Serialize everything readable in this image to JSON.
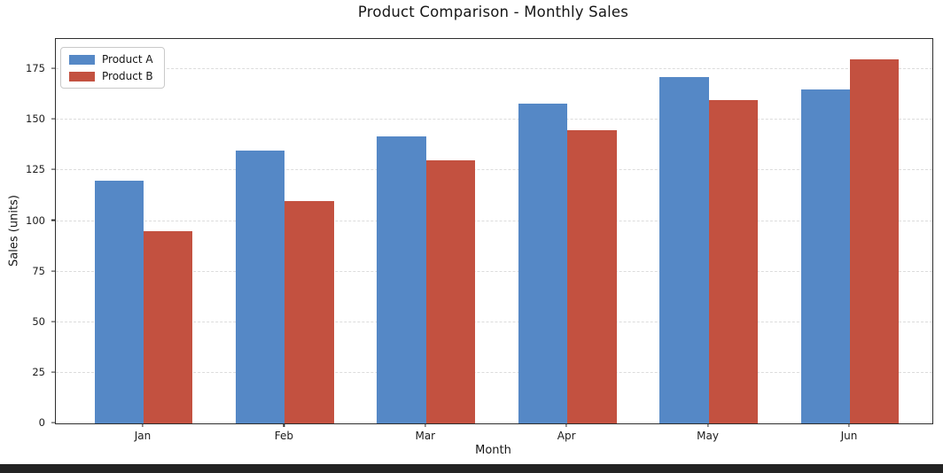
{
  "chart_data": {
    "type": "bar",
    "title": "Product Comparison - Monthly Sales",
    "xlabel": "Month",
    "ylabel": "Sales (units)",
    "categories": [
      "Jan",
      "Feb",
      "Mar",
      "Apr",
      "May",
      "Jun"
    ],
    "series": [
      {
        "name": "Product A",
        "color": "#5588C6",
        "values": [
          120,
          135,
          142,
          158,
          171,
          165
        ]
      },
      {
        "name": "Product B",
        "color": "#C35140",
        "values": [
          95,
          110,
          130,
          145,
          160,
          180
        ]
      }
    ],
    "ylim": [
      0,
      190
    ],
    "yticks": [
      0,
      25,
      50,
      75,
      100,
      125,
      150,
      175
    ],
    "grid": "horizontal-dashed",
    "gridline_color": "#dcdcdc",
    "legend_position": "upper-left"
  },
  "page": {
    "background": "#ffffff",
    "bottom_bar_color": "#232323"
  }
}
